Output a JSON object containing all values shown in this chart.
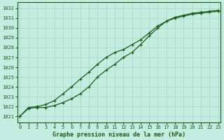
{
  "xlabel": "Graphe pression niveau de la mer (hPa)",
  "bg_color": "#c5ece0",
  "grid_color": "#b0d8c8",
  "line_color": "#1a5c1a",
  "x_ticks": [
    0,
    1,
    2,
    3,
    4,
    5,
    6,
    7,
    8,
    9,
    10,
    11,
    12,
    13,
    14,
    15,
    16,
    17,
    18,
    19,
    20,
    21,
    22,
    23
  ],
  "y_ticks": [
    1021,
    1022,
    1023,
    1024,
    1025,
    1026,
    1027,
    1028,
    1029,
    1030,
    1031,
    1032
  ],
  "ylim": [
    1020.4,
    1032.6
  ],
  "xlim": [
    -0.3,
    23.3
  ],
  "line1_x": [
    0,
    1,
    2,
    3,
    4,
    5,
    6,
    7,
    8,
    9,
    10,
    11,
    12,
    13,
    14,
    15,
    16,
    17,
    18,
    19,
    20,
    21,
    22,
    23
  ],
  "line1_y": [
    1021.0,
    1021.9,
    1022.0,
    1022.2,
    1022.6,
    1023.3,
    1024.0,
    1024.8,
    1025.5,
    1026.3,
    1027.0,
    1027.5,
    1027.8,
    1028.3,
    1028.8,
    1029.5,
    1030.2,
    1030.7,
    1031.0,
    1031.2,
    1031.4,
    1031.5,
    1031.6,
    1031.7
  ],
  "line2_x": [
    0,
    1,
    2,
    3,
    4,
    5,
    6,
    7,
    8,
    9,
    10,
    11,
    12,
    13,
    14,
    15,
    16,
    17,
    18,
    19,
    20,
    21,
    22,
    23
  ],
  "line2_y": [
    1021.0,
    1021.8,
    1021.9,
    1021.9,
    1022.1,
    1022.4,
    1022.8,
    1023.3,
    1024.0,
    1025.0,
    1025.7,
    1026.3,
    1027.0,
    1027.5,
    1028.3,
    1029.2,
    1030.0,
    1030.7,
    1031.1,
    1031.3,
    1031.5,
    1031.6,
    1031.7,
    1031.8
  ]
}
